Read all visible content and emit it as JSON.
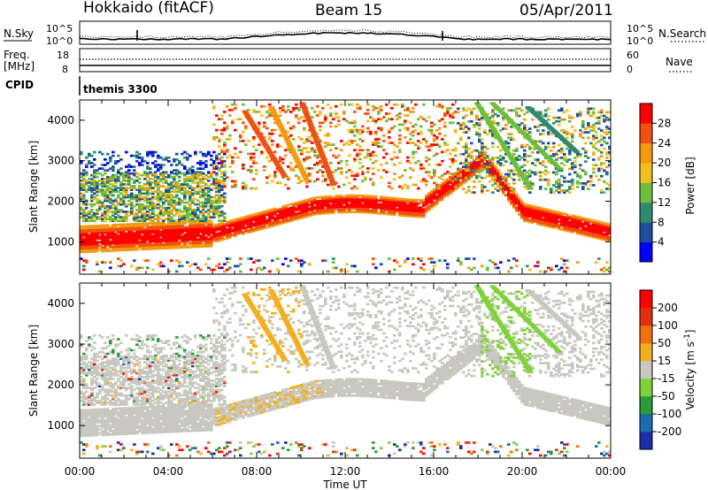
{
  "header": {
    "radar": "Hokkaido (fitACF)",
    "beam": "Beam 15",
    "date": "05/Apr/2011"
  },
  "status_panels": {
    "nsky_label": "N.Sky",
    "nsearch_label": "N.Search",
    "count_ticks_left": [
      "10^5",
      "10^0"
    ],
    "count_ticks_right": [
      "10^5",
      "10^0"
    ],
    "freq_label": "Freq.",
    "freq_unit": "[MHz]",
    "freq_ticks": [
      "18",
      "8"
    ],
    "nave_label": "Nave",
    "nave_ticks": [
      "60",
      "0"
    ],
    "cpid_label": "CPID",
    "cpid_value": "themis 3300"
  },
  "colors": {
    "power": [
      "#0000ff",
      "#1f4fa0",
      "#2e8a6e",
      "#6bbf3c",
      "#f0c020",
      "#f59a10",
      "#f05010",
      "#ff0000"
    ],
    "velocity": [
      "#1b2fa8",
      "#1f6bb0",
      "#2a9a3a",
      "#7fd23a",
      "#c8c8c0",
      "#f2b020",
      "#f07010",
      "#e03010",
      "#ff0000"
    ],
    "ground_scatter": "#c8c8c0"
  },
  "chart_data": [
    {
      "type": "heatmap",
      "name_hint": "power",
      "ylabel": "Slant Range [km]",
      "xlabel": "Time UT",
      "x_ticks": [
        "00:00",
        "04:00",
        "08:00",
        "12:00",
        "16:00",
        "20:00",
        "00:00"
      ],
      "xlim_hours": [
        0,
        24
      ],
      "y_ticks": [
        "1000",
        "2000",
        "3000",
        "4000"
      ],
      "ylim_km": [
        200,
        4500
      ],
      "colorbar_label": "Power [dB]",
      "colorbar_ticks": [
        "4",
        "8",
        "12",
        "16",
        "20",
        "24",
        "28"
      ],
      "colorbar_range": [
        0,
        32
      ]
    },
    {
      "type": "heatmap",
      "name_hint": "velocity",
      "ylabel": "Slant Range [km]",
      "xlabel": "Time UT",
      "x_ticks": [
        "00:00",
        "04:00",
        "08:00",
        "12:00",
        "16:00",
        "20:00",
        "00:00"
      ],
      "xlim_hours": [
        0,
        24
      ],
      "y_ticks": [
        "1000",
        "2000",
        "3000",
        "4000"
      ],
      "ylim_km": [
        200,
        4500
      ],
      "colorbar_label": "Velocity [m s",
      "colorbar_label_sup": "-1",
      "colorbar_label_end": "]",
      "colorbar_ticks": [
        "200",
        "100",
        "50",
        "15",
        "-15",
        "-50",
        "-100",
        "-200"
      ]
    }
  ],
  "x_axis_title": "Time UT"
}
